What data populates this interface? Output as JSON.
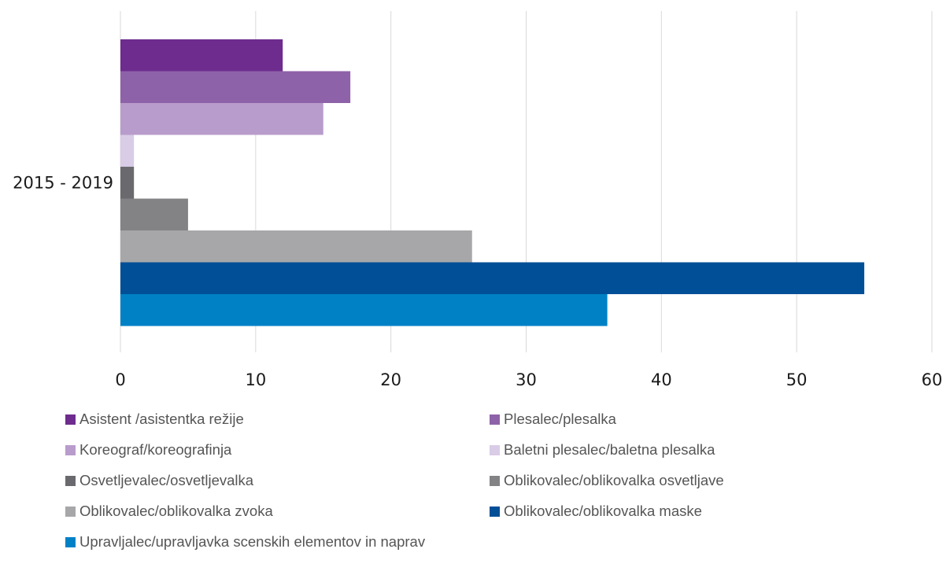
{
  "chart_data": {
    "type": "bar",
    "orientation": "horizontal",
    "title": "",
    "xlabel": "",
    "ylabel": "",
    "categories": [
      "2015 - 2019"
    ],
    "xlim": [
      0,
      60
    ],
    "xticks": [
      0,
      10,
      20,
      30,
      40,
      50,
      60
    ],
    "grid": "vertical",
    "legend_position": "bottom",
    "series": [
      {
        "name": "Asistent /asistentka režije",
        "values": [
          12
        ],
        "color": "#6e2c8e"
      },
      {
        "name": "Plesalec/plesalka",
        "values": [
          17
        ],
        "color": "#8e62a8"
      },
      {
        "name": "Koreograf/koreografinja",
        "values": [
          15
        ],
        "color": "#b89ccb"
      },
      {
        "name": "Baletni plesalec/baletna plesalka",
        "values": [
          1
        ],
        "color": "#d9cce6"
      },
      {
        "name": "Osvetljevalec/osvetljevalka",
        "values": [
          1
        ],
        "color": "#6a6a6e"
      },
      {
        "name": "Oblikovalec/oblikovalka osvetljave",
        "values": [
          5
        ],
        "color": "#838386"
      },
      {
        "name": "Oblikovalec/oblikovalka zvoka",
        "values": [
          26
        ],
        "color": "#a7a7aa"
      },
      {
        "name": "Oblikovalec/oblikovalka maske",
        "values": [
          55
        ],
        "color": "#004f97"
      },
      {
        "name": "Upravljalec/upravljavka scenskih elementov in naprav",
        "values": [
          36
        ],
        "color": "#0081c6"
      }
    ]
  }
}
